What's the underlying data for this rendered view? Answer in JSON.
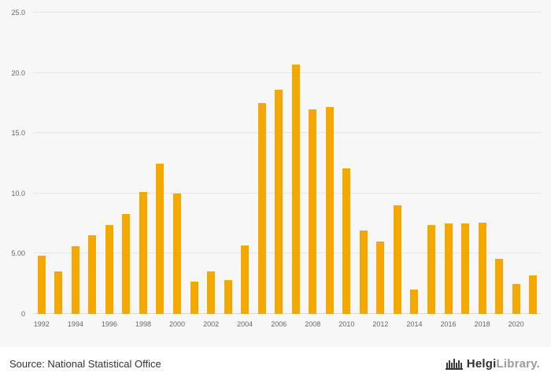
{
  "chart_data": {
    "type": "bar",
    "categories": [
      "1992",
      "1993",
      "1994",
      "1995",
      "1996",
      "1997",
      "1998",
      "1999",
      "2000",
      "2001",
      "2002",
      "2003",
      "2004",
      "2005",
      "2006",
      "2007",
      "2008",
      "2009",
      "2010",
      "2011",
      "2012",
      "2013",
      "2014",
      "2015",
      "2016",
      "2017",
      "2018",
      "2019",
      "2020",
      "2021"
    ],
    "values": [
      4.8,
      3.5,
      5.6,
      6.5,
      7.4,
      8.3,
      10.1,
      12.5,
      10.0,
      2.7,
      3.5,
      2.8,
      5.7,
      17.5,
      18.6,
      20.7,
      17.0,
      17.2,
      12.1,
      6.9,
      6.0,
      9.0,
      2.0,
      7.4,
      7.5,
      7.5,
      7.6,
      4.6,
      2.5,
      3.2
    ],
    "title": "",
    "xlabel": "",
    "ylabel": "",
    "ylim": [
      0,
      25
    ],
    "ytick_values": [
      0,
      5,
      10,
      15,
      20,
      25
    ],
    "ytick_labels": [
      "0",
      "5.00",
      "10.0",
      "15.0",
      "20.0",
      "25.0"
    ],
    "xtick_labels_shown": [
      "1992",
      "1994",
      "1996",
      "1998",
      "2000",
      "2002",
      "2004",
      "2006",
      "2008",
      "2010",
      "2012",
      "2014",
      "2016",
      "2018",
      "2020"
    ],
    "bar_color": "#F5A800",
    "background_color": "#f7f7f7",
    "grid": true,
    "legend_position": "none"
  },
  "footer": {
    "source": "Source: National Statistical Office",
    "logo_primary": "Helgi",
    "logo_secondary": "Library."
  }
}
